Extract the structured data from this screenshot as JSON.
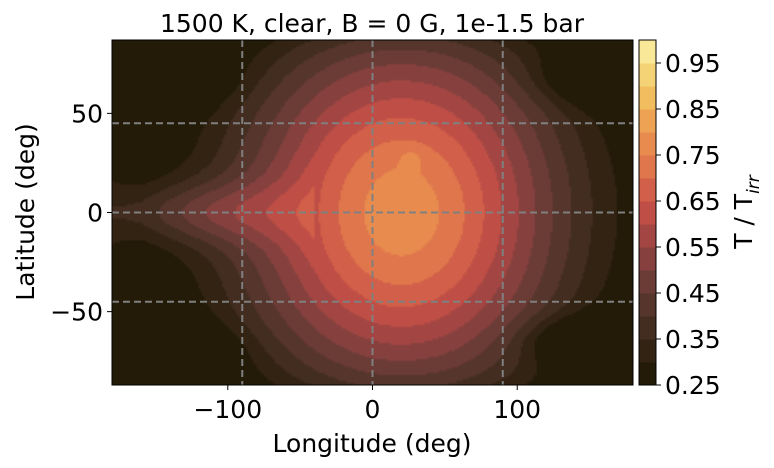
{
  "chart_data": {
    "type": "heatmap",
    "title": "1500 K, clear, B = 0 G, 1e-1.5 bar",
    "xlabel": "Longitude (deg)",
    "ylabel": "Latitude (deg)",
    "xlim": [
      -180,
      180
    ],
    "ylim": [
      -87,
      87
    ],
    "xticks": [
      -100,
      0,
      100
    ],
    "xtick_labels": [
      "−100",
      "0",
      "100"
    ],
    "yticks": [
      -50,
      0,
      50
    ],
    "ytick_labels": [
      "−50",
      "0",
      "50"
    ],
    "grid_lines": {
      "x": [
        -90,
        0,
        90
      ],
      "y": [
        -45,
        0,
        45
      ],
      "style": "dashed",
      "color": "#808080"
    },
    "colorbar": {
      "label": "T / T",
      "label_subscript": "irr",
      "range": [
        0.25,
        1.0
      ],
      "levels": [
        0.25,
        0.3,
        0.35,
        0.4,
        0.45,
        0.5,
        0.55,
        0.6,
        0.65,
        0.7,
        0.75,
        0.8,
        0.85,
        0.9,
        0.95,
        1.0
      ],
      "tick_values": [
        0.25,
        0.35,
        0.45,
        0.55,
        0.65,
        0.75,
        0.85,
        0.95
      ],
      "tick_labels": [
        "0.25",
        "0.35",
        "0.45",
        "0.55",
        "0.65",
        "0.75",
        "0.85",
        "0.95"
      ],
      "colormap": [
        "#231a07",
        "#322313",
        "#432d21",
        "#55352c",
        "#6b3b36",
        "#86413e",
        "#a34643",
        "#bf4e46",
        "#d25f49",
        "#df764c",
        "#e88b4f",
        "#eea354",
        "#f1bd5e",
        "#f4d377",
        "#f8e898",
        "#fdf7bc"
      ]
    },
    "field_description_features": {
      "dayside_hot_region": {
        "lon_center": 20,
        "lat_extent": [
          -70,
          70
        ],
        "peak_value": 0.78
      },
      "cold_vortices": [
        {
          "lon": -145,
          "lat": 68,
          "value": 0.33
        },
        {
          "lon": -140,
          "lat": -70,
          "value": 0.33
        },
        {
          "lon": 160,
          "lat": 68,
          "value": 0.33
        },
        {
          "lon": 145,
          "lat": -65,
          "value": 0.33
        }
      ],
      "equatorial_jet_tongue": {
        "lon_range": [
          -180,
          -40
        ],
        "value": 0.66
      }
    }
  }
}
